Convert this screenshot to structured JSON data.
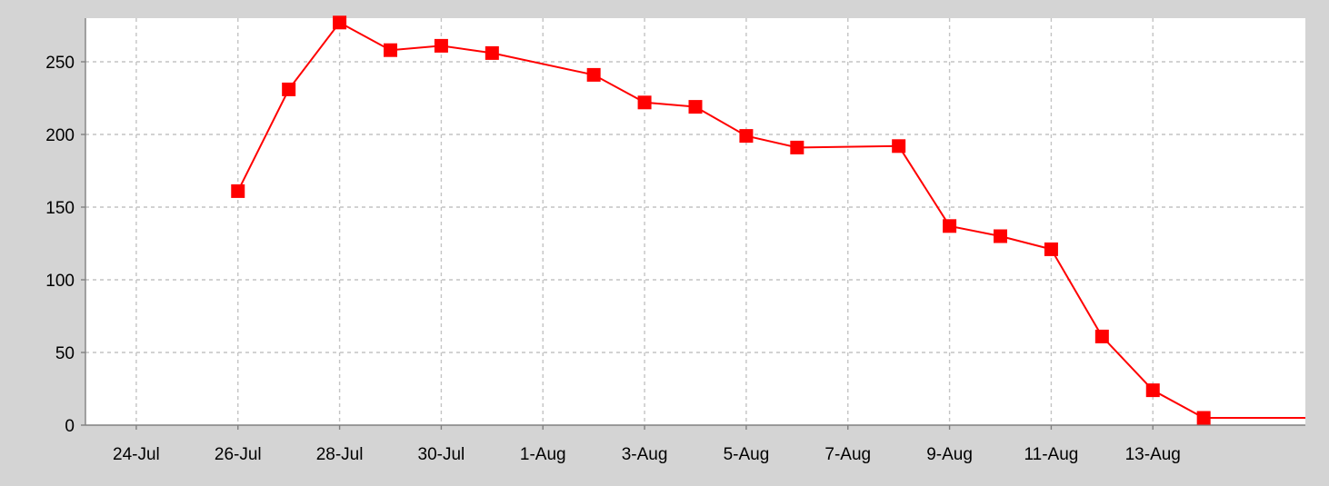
{
  "chart_data": {
    "type": "line",
    "title": "",
    "xlabel": "",
    "ylabel": "",
    "x": [
      "26-Jul",
      "27-Jul",
      "28-Jul",
      "29-Jul",
      "30-Jul",
      "31-Jul",
      "2-Aug",
      "3-Aug",
      "4-Aug",
      "5-Aug",
      "6-Aug",
      "8-Aug",
      "9-Aug",
      "10-Aug",
      "11-Aug",
      "12-Aug",
      "13-Aug",
      "14-Aug"
    ],
    "series": [
      {
        "color": "#ff0000",
        "marker": "square",
        "values": [
          161,
          231,
          277,
          258,
          261,
          256,
          241,
          222,
          219,
          199,
          191,
          192,
          137,
          130,
          121,
          61,
          24,
          5
        ],
        "extends_to_right_edge_at": 5
      }
    ],
    "xlim": [
      "23-Jul",
      "16-Aug"
    ],
    "ylim": [
      0,
      280
    ],
    "x_ticks": [
      "24-Jul",
      "26-Jul",
      "28-Jul",
      "30-Jul",
      "1-Aug",
      "3-Aug",
      "5-Aug",
      "7-Aug",
      "9-Aug",
      "11-Aug",
      "13-Aug"
    ],
    "y_ticks": [
      0,
      50,
      100,
      150,
      200,
      250
    ],
    "grid": true,
    "legend": "none"
  },
  "colors": {
    "background": "#d4d4d4",
    "plot_background": "#ffffff",
    "grid": "#c4c4c4",
    "axis": "#808080",
    "line": "#ff0000"
  }
}
